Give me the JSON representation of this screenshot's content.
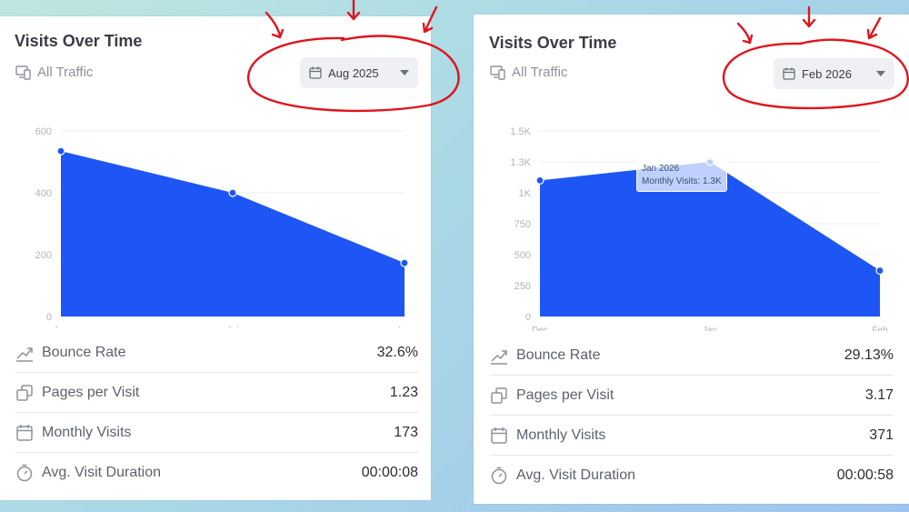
{
  "colors": {
    "area": "#1d56f5",
    "grid": "#eceef1",
    "axis_text": "#b0b4ba",
    "annotation": "#e0141c"
  },
  "left": {
    "title": "Visits Over Time",
    "subtitle": "All Traffic",
    "subtitle_icon": "devices-icon",
    "date_value": "Aug 2025",
    "metrics": [
      {
        "icon": "trend-icon",
        "label": "Bounce Rate",
        "value": "32.6%"
      },
      {
        "icon": "pages-icon",
        "label": "Pages per Visit",
        "value": "1.23"
      },
      {
        "icon": "calendar-icon",
        "label": "Monthly Visits",
        "value": "173"
      },
      {
        "icon": "timer-icon",
        "label": "Avg. Visit Duration",
        "value": "00:00:08"
      }
    ]
  },
  "right": {
    "title": "Visits Over Time",
    "subtitle": "All Traffic",
    "subtitle_icon": "devices-icon",
    "date_value": "Feb 2026",
    "tooltip": {
      "line1": "Jan 2026",
      "line2": "Monthly Visits: 1.3K"
    },
    "metrics": [
      {
        "icon": "trend-icon",
        "label": "Bounce Rate",
        "value": "29.13%"
      },
      {
        "icon": "pages-icon",
        "label": "Pages per Visit",
        "value": "3.17"
      },
      {
        "icon": "calendar-icon",
        "label": "Monthly Visits",
        "value": "371"
      },
      {
        "icon": "timer-icon",
        "label": "Avg. Visit Duration",
        "value": "00:00:58"
      }
    ]
  },
  "chart_data": [
    {
      "type": "area",
      "title": "Visits Over Time",
      "categories": [
        "Jun",
        "Jul",
        "Aug"
      ],
      "values": [
        535,
        400,
        173
      ],
      "yticks": [
        "0",
        "200",
        "400",
        "600"
      ],
      "ylim": [
        0,
        600
      ],
      "grid": true
    },
    {
      "type": "area",
      "title": "Visits Over Time",
      "categories": [
        "Dec",
        "Jan",
        "Feb"
      ],
      "values": [
        1100,
        1250,
        371
      ],
      "yticks": [
        "0",
        "250",
        "500",
        "750",
        "1K",
        "1.3K",
        "1.5K"
      ],
      "yvalues": [
        0,
        250,
        500,
        750,
        1000,
        1250,
        1500
      ],
      "ylim": [
        0,
        1500
      ],
      "grid": true
    }
  ]
}
